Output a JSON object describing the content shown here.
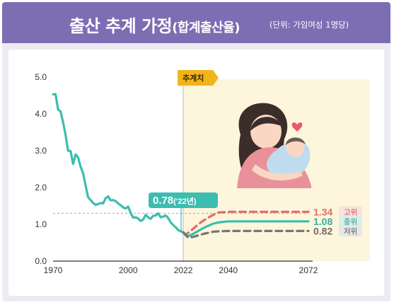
{
  "header": {
    "title": "출산 추계 가정",
    "title_paren": "(합계출산율)",
    "unit_note": "(단위: 가임여성 1명당)"
  },
  "projection_tag": "추계치",
  "callout": {
    "value": "0.78",
    "year": "('22년)"
  },
  "colors": {
    "banner": "#7d6db3",
    "observed": "#3cbdb0",
    "high": "#e26b67",
    "medium": "#3cbdb0",
    "low": "#767676",
    "projection_bg": "#fdf5dc",
    "tag": "#f1b51c"
  },
  "illustration": "mother-holding-baby",
  "chart_data": {
    "type": "line",
    "title": "출산 추계 가정",
    "subtitle": "(단위: 가임여성 1명당)",
    "xlabel": "",
    "ylabel": "",
    "xlim": [
      1970,
      2072
    ],
    "ylim": [
      0.0,
      5.0
    ],
    "x_ticks": [
      "1970",
      "2000",
      "2022",
      "2040",
      "2072"
    ],
    "y_ticks": [
      "0.0",
      "1.0",
      "2.0",
      "3.0",
      "4.0",
      "5.0"
    ],
    "grid": false,
    "reference_line": 1.3,
    "projection_start": 2022,
    "series": [
      {
        "role": "observed",
        "x": [
          1970,
          1971,
          1972,
          1973,
          1974,
          1975,
          1976,
          1977,
          1978,
          1979,
          1980,
          1981,
          1982,
          1983,
          1984,
          1985,
          1986,
          1987,
          1988,
          1989,
          1990,
          1991,
          1992,
          1993,
          1994,
          1995,
          1996,
          1997,
          1998,
          1999,
          2000,
          2001,
          2002,
          2003,
          2004,
          2005,
          2006,
          2007,
          2008,
          2009,
          2010,
          2011,
          2012,
          2013,
          2014,
          2015,
          2016,
          2017,
          2018,
          2019,
          2020,
          2021,
          2022
        ],
        "values": [
          4.53,
          4.54,
          4.12,
          4.07,
          3.77,
          3.43,
          3.0,
          2.99,
          2.64,
          2.9,
          2.82,
          2.57,
          2.39,
          2.06,
          1.74,
          1.66,
          1.58,
          1.53,
          1.55,
          1.58,
          1.57,
          1.71,
          1.76,
          1.65,
          1.66,
          1.63,
          1.57,
          1.52,
          1.46,
          1.43,
          1.48,
          1.31,
          1.18,
          1.19,
          1.16,
          1.09,
          1.13,
          1.26,
          1.19,
          1.15,
          1.23,
          1.24,
          1.3,
          1.19,
          1.21,
          1.24,
          1.17,
          1.05,
          0.98,
          0.92,
          0.84,
          0.81,
          0.78
        ]
      },
      {
        "name": "고위",
        "x": [
          2022,
          2023,
          2024,
          2026,
          2028,
          2030,
          2032,
          2034,
          2036,
          2040,
          2050,
          2060,
          2072
        ],
        "values": [
          0.78,
          0.73,
          0.77,
          0.88,
          1.0,
          1.1,
          1.18,
          1.26,
          1.32,
          1.34,
          1.34,
          1.34,
          1.34
        ],
        "label": "1.34"
      },
      {
        "name": "중위",
        "x": [
          2022,
          2023,
          2024,
          2026,
          2028,
          2030,
          2032,
          2034,
          2036,
          2040,
          2050,
          2060,
          2072
        ],
        "values": [
          0.78,
          0.72,
          0.68,
          0.74,
          0.82,
          0.9,
          0.96,
          1.02,
          1.05,
          1.08,
          1.08,
          1.08,
          1.08
        ],
        "label": "1.08"
      },
      {
        "name": "저위",
        "x": [
          2022,
          2023,
          2024,
          2026,
          2028,
          2030,
          2032,
          2034,
          2036,
          2040,
          2050,
          2060,
          2072
        ],
        "values": [
          0.78,
          0.7,
          0.64,
          0.66,
          0.7,
          0.74,
          0.77,
          0.8,
          0.81,
          0.82,
          0.82,
          0.82,
          0.82
        ],
        "label": "0.82"
      }
    ]
  }
}
